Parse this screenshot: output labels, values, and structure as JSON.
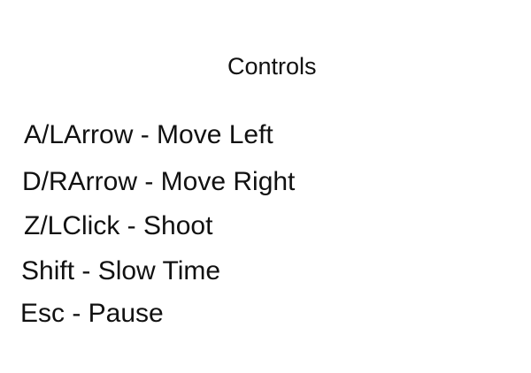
{
  "screen": {
    "title": "Controls",
    "controls": [
      "A/LArrow - Move Left",
      "D/RArrow - Move Right",
      "Z/LClick - Shoot",
      "Shift - Slow Time",
      "Esc - Pause"
    ]
  }
}
